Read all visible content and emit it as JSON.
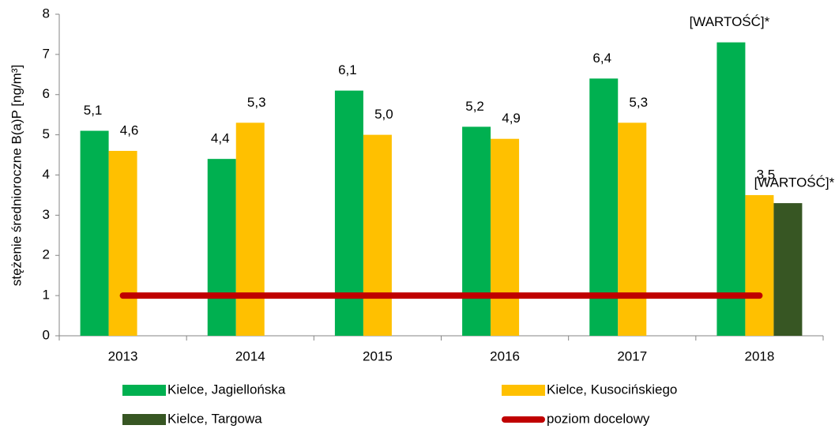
{
  "chart_data": {
    "type": "bar",
    "y_label": "stężenie średnioroczne B(a)P [ng/m³]",
    "categories": [
      "2013",
      "2014",
      "2015",
      "2016",
      "2017",
      "2018"
    ],
    "ylim": [
      0,
      8
    ],
    "yticks": [
      0,
      1,
      2,
      3,
      4,
      5,
      6,
      7,
      8
    ],
    "series": [
      {
        "name": "Kielce, Jagiellońska",
        "color": "#00b050",
        "values": [
          5.1,
          4.4,
          6.1,
          5.2,
          6.4,
          7.3
        ],
        "value_labels": [
          "5,1",
          "4,4",
          "6,1",
          "5,2",
          "6,4",
          "[WARTOŚĆ]*"
        ]
      },
      {
        "name": "Kielce, Kusocińskiego",
        "color": "#ffc000",
        "values": [
          4.6,
          5.3,
          5.0,
          4.9,
          5.3,
          3.5
        ],
        "value_labels": [
          "4,6",
          "5,3",
          "5,0",
          "4,9",
          "5,3",
          "3,5"
        ]
      },
      {
        "name": "Kielce, Targowa",
        "color": "#375623",
        "values": [
          null,
          null,
          null,
          null,
          null,
          3.3
        ],
        "value_labels": [
          null,
          null,
          null,
          null,
          null,
          "[WARTOŚĆ]*"
        ]
      },
      {
        "name": "poziom docelowy",
        "type": "line",
        "color": "#c00000",
        "values": [
          1,
          1,
          1,
          1,
          1,
          1
        ]
      }
    ]
  }
}
